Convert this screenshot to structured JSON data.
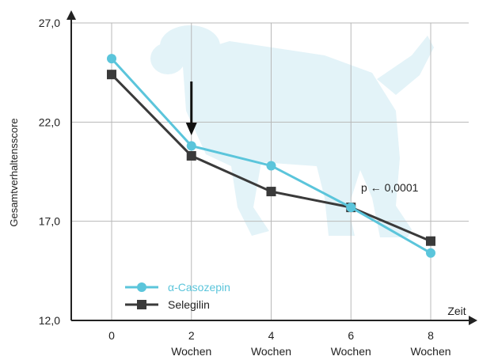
{
  "chart_data": {
    "type": "line",
    "x": [
      0,
      2,
      4,
      6,
      8
    ],
    "x_tick_labels": [
      "0",
      "2",
      "4",
      "6",
      "8"
    ],
    "x_tick_sublabel": "Wochen",
    "xlabel": "Zeit",
    "ylabel": "Gesamtverhaltensscore",
    "ylim": [
      12.0,
      27.0
    ],
    "y_ticks": [
      12.0,
      17.0,
      22.0,
      27.0
    ],
    "y_tick_labels": [
      "12,0",
      "17,0",
      "22,0",
      "27,0"
    ],
    "grid": true,
    "legend_position": "bottom-left",
    "series": [
      {
        "name": "α-Casozepin",
        "values": [
          25.2,
          20.8,
          19.8,
          17.7,
          15.4
        ],
        "color": "#5bc5db",
        "marker": "circle"
      },
      {
        "name": "Selegilin",
        "values": [
          24.4,
          20.3,
          18.5,
          17.7,
          16.0
        ],
        "color": "#3a3a3a",
        "marker": "square"
      }
    ],
    "annotations": [
      {
        "text": "p ← 0,0001",
        "x": 6,
        "y": 18.7
      },
      {
        "type": "arrow-down",
        "x": 2,
        "y_from": 23.0,
        "y_to": 20.9
      }
    ],
    "background_icon": "dog-silhouette-icon"
  }
}
